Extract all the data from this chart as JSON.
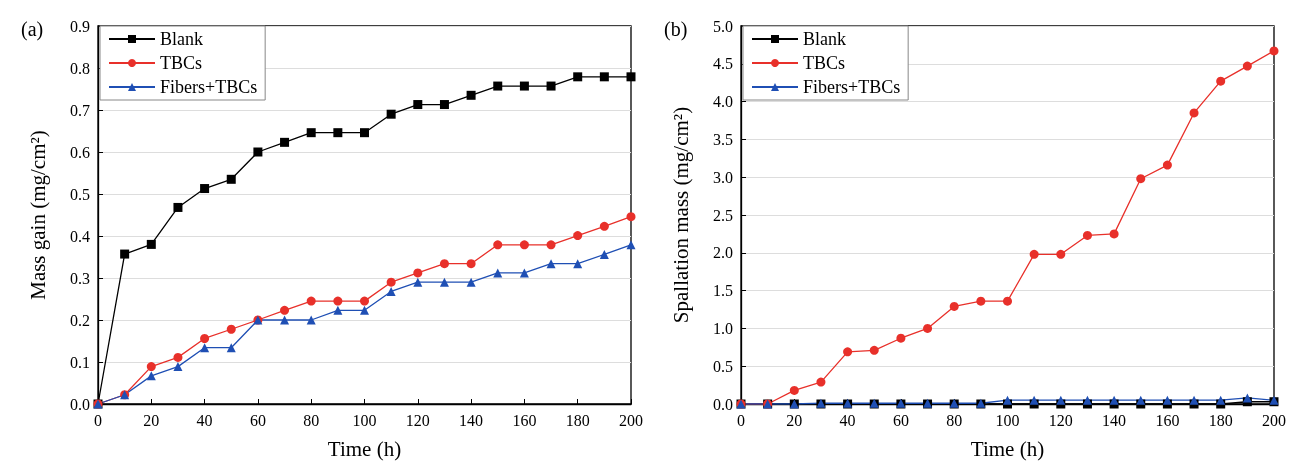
{
  "chart_data": [
    {
      "type": "line",
      "title": "(a)",
      "xlabel": "Time (h)",
      "ylabel": "Mass gain (mg/cm²)",
      "x": [
        0,
        10,
        20,
        30,
        40,
        50,
        60,
        70,
        80,
        90,
        100,
        110,
        120,
        130,
        140,
        150,
        160,
        170,
        180,
        190,
        200
      ],
      "series": [
        {
          "name": "Blank",
          "color": "#000000",
          "marker": "square",
          "values": [
            0,
            0.357,
            0.38,
            0.468,
            0.513,
            0.535,
            0.6,
            0.623,
            0.646,
            0.646,
            0.646,
            0.69,
            0.713,
            0.713,
            0.735,
            0.757,
            0.757,
            0.757,
            0.779,
            0.779,
            0.779
          ]
        },
        {
          "name": "TBCs",
          "color": "#e8302a",
          "marker": "circle",
          "values": [
            0,
            0.022,
            0.089,
            0.111,
            0.156,
            0.178,
            0.2,
            0.223,
            0.245,
            0.245,
            0.245,
            0.29,
            0.312,
            0.334,
            0.334,
            0.379,
            0.379,
            0.379,
            0.401,
            0.423,
            0.446
          ]
        },
        {
          "name": "Fibers+TBCs",
          "color": "#1f4fb4",
          "marker": "triangle",
          "values": [
            0,
            0.022,
            0.067,
            0.089,
            0.134,
            0.134,
            0.2,
            0.2,
            0.2,
            0.223,
            0.223,
            0.268,
            0.29,
            0.29,
            0.29,
            0.312,
            0.312,
            0.334,
            0.334,
            0.356,
            0.379
          ]
        }
      ],
      "xlim": [
        0,
        200
      ],
      "xticks": [
        0,
        20,
        40,
        60,
        80,
        100,
        120,
        140,
        160,
        180,
        200
      ],
      "ylim": [
        0,
        0.9
      ],
      "yticks": [
        {
          "value": 0,
          "label": "0.0"
        },
        0.1,
        0.2,
        0.3,
        0.4,
        0.5,
        0.6,
        0.7,
        0.8,
        0.9
      ],
      "grid": "y",
      "legend": "top left"
    },
    {
      "type": "line",
      "title": "(b)",
      "xlabel": "Time (h)",
      "ylabel": "Spallation mass (mg/cm²)",
      "x": [
        0,
        10,
        20,
        30,
        40,
        50,
        60,
        70,
        80,
        90,
        100,
        110,
        120,
        130,
        140,
        150,
        160,
        170,
        180,
        190,
        200
      ],
      "series": [
        {
          "name": "Blank",
          "color": "#000000",
          "marker": "square",
          "values": [
            0,
            0,
            0,
            0,
            0,
            0,
            0,
            0,
            0,
            0,
            0,
            0,
            0,
            0,
            0,
            0,
            0,
            0,
            0,
            0.03,
            0.03
          ]
        },
        {
          "name": "TBCs",
          "color": "#e8302a",
          "marker": "circle",
          "values": [
            0,
            0,
            0.18,
            0.29,
            0.69,
            0.71,
            0.87,
            1.0,
            1.29,
            1.36,
            1.36,
            1.98,
            1.98,
            2.23,
            2.25,
            2.98,
            3.16,
            3.85,
            4.27,
            4.47,
            4.67
          ]
        },
        {
          "name": "Fibers+TBCs",
          "color": "#1f4fb4",
          "marker": "triangle",
          "values": [
            0,
            0,
            0,
            0.01,
            0.01,
            0.01,
            0.01,
            0.01,
            0.01,
            0.01,
            0.05,
            0.05,
            0.05,
            0.05,
            0.05,
            0.05,
            0.05,
            0.05,
            0.05,
            0.08,
            0.05
          ]
        }
      ],
      "xlim": [
        0,
        200
      ],
      "xticks": [
        0,
        20,
        40,
        60,
        80,
        100,
        120,
        140,
        160,
        180,
        200
      ],
      "ylim": [
        0,
        5
      ],
      "yticks": [
        {
          "value": 0,
          "label": "0.0"
        },
        0.5,
        {
          "value": 1,
          "label": "1.0"
        },
        1.5,
        {
          "value": 2,
          "label": "2.0"
        },
        2.5,
        {
          "value": 3,
          "label": "3.0"
        },
        3.5,
        {
          "value": 4,
          "label": "4.0"
        },
        4.5,
        {
          "value": 5,
          "label": "5.0"
        }
      ],
      "grid": "y",
      "legend": "top left"
    }
  ]
}
